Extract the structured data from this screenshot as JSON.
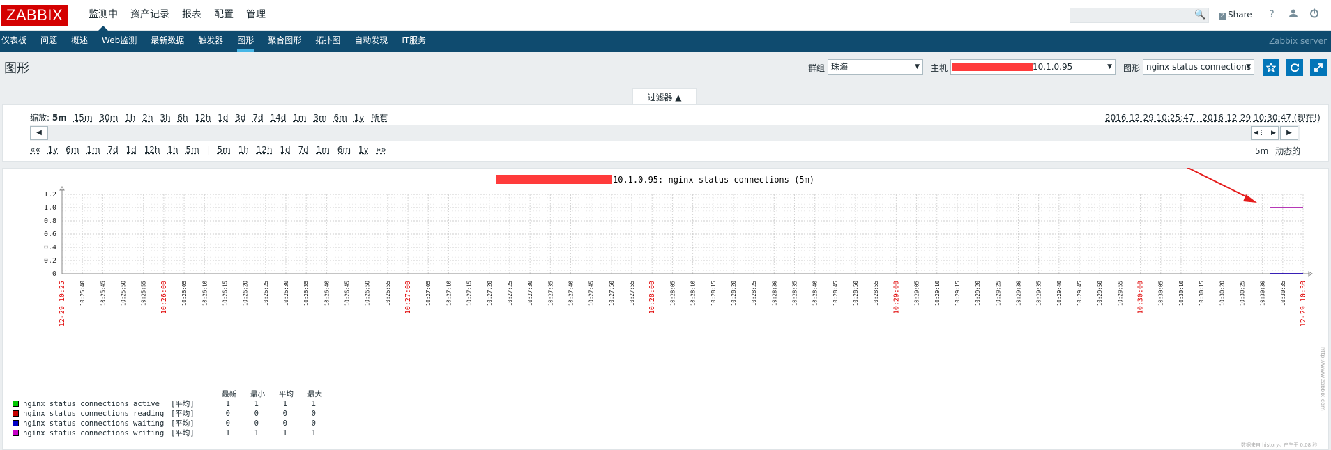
{
  "app": {
    "logo": "ZABBIX",
    "main_menu": [
      "监测中",
      "资产记录",
      "报表",
      "配置",
      "管理"
    ],
    "sub_menu": [
      "仪表板",
      "问题",
      "概述",
      "Web监测",
      "最新数据",
      "触发器",
      "图形",
      "聚合图形",
      "拓扑图",
      "自动发现",
      "IT服务"
    ],
    "share": "Share",
    "help": "?",
    "server_name": "Zabbix server"
  },
  "page": {
    "title": "图形",
    "group_label": "群组",
    "group_value": "珠海",
    "host_label": "主机",
    "host_value": "10.1.0.95",
    "graph_label": "图形",
    "graph_value": "nginx status connections"
  },
  "filter": {
    "tab_label": "过滤器 ▲",
    "zoom_label": "缩放:",
    "zoom_options": [
      "5m",
      "15m",
      "30m",
      "1h",
      "2h",
      "3h",
      "6h",
      "12h",
      "1d",
      "3d",
      "7d",
      "14d",
      "1m",
      "3m",
      "6m",
      "1y",
      "所有"
    ],
    "range_text": "2016-12-29 10:25:47 - 2016-12-29 10:30:47 (现在!)",
    "nav_back": [
      "««",
      "1y",
      "6m",
      "1m",
      "7d",
      "1d",
      "12h",
      "1h",
      "5m"
    ],
    "nav_sep": "|",
    "nav_fwd": [
      "5m",
      "1h",
      "12h",
      "1d",
      "7d",
      "1m",
      "6m",
      "1y",
      "»»"
    ],
    "period_value": "5m",
    "dynamic_label": "动态的"
  },
  "chart_data": {
    "type": "line",
    "title": "10.1.0.95: nginx status connections (5m)",
    "ylim": [
      0,
      1.2
    ],
    "y_ticks": [
      "1.2",
      "1.0",
      "0.8",
      "0.6",
      "0.4",
      "0.2",
      "0"
    ],
    "x_major_labels": [
      "12-29 10:25",
      "10:26:00",
      "10:27:00",
      "10:28:00",
      "10:29:00",
      "10:30:00",
      "12-29 10:30"
    ],
    "x_minor_labels": [
      "10:25:40",
      "10:25:45",
      "10:25:50",
      "10:25:55",
      "10:26:00",
      "10:26:05",
      "10:26:10",
      "10:26:15",
      "10:26:20",
      "10:26:25",
      "10:26:30",
      "10:26:35",
      "10:26:40",
      "10:26:45",
      "10:26:50",
      "10:26:55",
      "10:27:00",
      "10:27:05",
      "10:27:10",
      "10:27:15",
      "10:27:20",
      "10:27:25",
      "10:27:30",
      "10:27:35",
      "10:27:40",
      "10:27:45",
      "10:27:50",
      "10:27:55",
      "10:28:00",
      "10:28:05",
      "10:28:10",
      "10:28:15",
      "10:28:20",
      "10:28:25",
      "10:28:30",
      "10:28:35",
      "10:28:40",
      "10:28:45",
      "10:28:50",
      "10:28:55",
      "10:29:00",
      "10:29:05",
      "10:29:10",
      "10:29:15",
      "10:29:20",
      "10:29:25",
      "10:29:30",
      "10:29:35",
      "10:29:40",
      "10:29:45",
      "10:29:50",
      "10:29:55",
      "10:30:00",
      "10:30:05",
      "10:30:10",
      "10:30:15",
      "10:30:20",
      "10:30:25",
      "10:30:30",
      "10:30:35"
    ],
    "series": [
      {
        "name": "nginx status connections active",
        "func": "[平均]",
        "color": "#00c800",
        "last": "1",
        "min": "1",
        "avg": "1",
        "max": "1",
        "value": 1
      },
      {
        "name": "nginx status connections reading",
        "func": "[平均]",
        "color": "#c80000",
        "last": "0",
        "min": "0",
        "avg": "0",
        "max": "0",
        "value": 0
      },
      {
        "name": "nginx status connections waiting",
        "func": "[平均]",
        "color": "#0000c8",
        "last": "0",
        "min": "0",
        "avg": "0",
        "max": "0",
        "value": 0
      },
      {
        "name": "nginx status connections writing",
        "func": "[平均]",
        "color": "#c800c8",
        "last": "1",
        "min": "1",
        "avg": "1",
        "max": "1",
        "value": 1
      }
    ],
    "legend_headers": [
      "最新",
      "最小",
      "平均",
      "最大"
    ],
    "footnote": "数据来自 history。产生于 0.08 秒",
    "watermark": "http://www.zabbix.com"
  }
}
